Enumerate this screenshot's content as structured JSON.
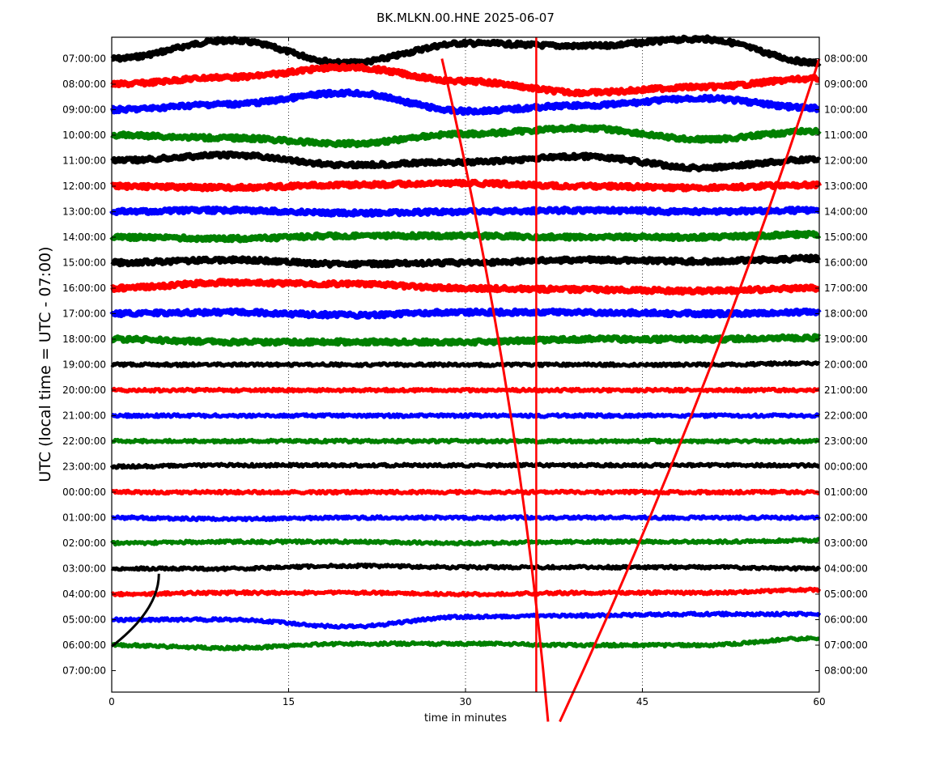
{
  "chart_data": {
    "type": "line",
    "title": "BK.MLKN.00.HNE 2025-06-07",
    "xlabel": "time in minutes",
    "ylabel": "UTC (local time = UTC - 07:00)",
    "xlim": [
      0,
      60
    ],
    "x_ticks": [
      "0",
      "15",
      "30",
      "45",
      "60"
    ],
    "grid": "vertical dotted lines at x ticks",
    "left_tick_labels": [
      "07:00:00",
      "08:00:00",
      "09:00:00",
      "10:00:00",
      "11:00:00",
      "12:00:00",
      "13:00:00",
      "14:00:00",
      "15:00:00",
      "16:00:00",
      "17:00:00",
      "18:00:00",
      "19:00:00",
      "20:00:00",
      "21:00:00",
      "22:00:00",
      "23:00:00",
      "00:00:00",
      "01:00:00",
      "02:00:00",
      "03:00:00",
      "04:00:00",
      "05:00:00",
      "06:00:00",
      "07:00:00"
    ],
    "right_tick_labels": [
      "08:00:00",
      "09:00:00",
      "10:00:00",
      "11:00:00",
      "12:00:00",
      "13:00:00",
      "14:00:00",
      "15:00:00",
      "16:00:00",
      "17:00:00",
      "18:00:00",
      "19:00:00",
      "20:00:00",
      "21:00:00",
      "22:00:00",
      "23:00:00",
      "00:00:00",
      "01:00:00",
      "02:00:00",
      "03:00:00",
      "04:00:00",
      "05:00:00",
      "06:00:00",
      "07:00:00",
      "08:00:00"
    ],
    "trace_colors": [
      "#000000",
      "#ff0000",
      "#0000ff",
      "#008000"
    ],
    "trace_count": 24,
    "vertical_marker_minute": 36,
    "drift_curves": [
      {
        "color": "#ff0000",
        "points": [
          [
            28,
            0
          ],
          [
            37,
            26
          ]
        ]
      },
      {
        "color": "#ff0000",
        "points": [
          [
            38,
            26
          ],
          [
            60,
            0
          ]
        ]
      },
      {
        "color": "#000000",
        "points": [
          [
            0,
            23.05
          ],
          [
            4,
            20.2
          ]
        ]
      }
    ],
    "trace_offsets": [
      [
        0.0,
        1.3,
        -0.3,
        1.1,
        0.9,
        1.4,
        -0.3
      ],
      [
        0.0,
        0.5,
        1.2,
        0.2,
        -0.6,
        -0.2,
        0.4
      ],
      [
        0.0,
        0.4,
        1.2,
        -0.1,
        0.3,
        0.8,
        0.1
      ],
      [
        0.0,
        -0.2,
        -0.6,
        0.1,
        0.5,
        -0.3,
        0.3
      ],
      [
        0.0,
        0.4,
        -0.3,
        -0.1,
        0.3,
        -0.5,
        0.1
      ],
      [
        0.0,
        -0.1,
        0.1,
        0.2,
        0.0,
        -0.1,
        0.1
      ],
      [
        0.0,
        0.1,
        -0.1,
        0.0,
        0.1,
        0.0,
        0.1
      ],
      [
        0.0,
        -0.1,
        0.1,
        0.1,
        0.0,
        0.0,
        0.2
      ],
      [
        0.0,
        0.2,
        -0.1,
        0.0,
        0.2,
        0.1,
        0.3
      ],
      [
        0.0,
        0.4,
        0.3,
        0.0,
        -0.1,
        -0.2,
        0.0
      ],
      [
        0.0,
        0.1,
        -0.1,
        0.1,
        0.1,
        0.0,
        0.1
      ],
      [
        0.0,
        -0.2,
        -0.2,
        -0.2,
        0.0,
        0.0,
        0.1
      ],
      [
        0.0,
        0.0,
        0.0,
        0.0,
        0.0,
        0.0,
        0.1
      ],
      [
        0.0,
        0.0,
        0.0,
        0.0,
        0.0,
        0.0,
        0.0
      ],
      [
        0.0,
        0.0,
        0.0,
        0.0,
        0.0,
        0.0,
        0.0
      ],
      [
        0.0,
        0.0,
        0.0,
        0.0,
        0.0,
        0.0,
        0.0
      ],
      [
        0.0,
        0.1,
        0.1,
        0.1,
        0.1,
        0.1,
        0.1
      ],
      [
        0.0,
        0.0,
        0.0,
        0.0,
        0.0,
        0.0,
        0.0
      ],
      [
        0.0,
        -0.1,
        0.0,
        0.0,
        0.0,
        0.0,
        0.0
      ],
      [
        0.0,
        0.1,
        0.1,
        0.0,
        0.1,
        0.1,
        0.2
      ],
      [
        0.0,
        0.0,
        0.2,
        0.1,
        0.1,
        0.1,
        0.0
      ],
      [
        0.0,
        0.1,
        0.1,
        0.0,
        0.1,
        0.1,
        0.3
      ],
      [
        0.0,
        0.0,
        -0.5,
        0.2,
        0.3,
        0.4,
        0.4
      ],
      [
        0.0,
        -0.2,
        0.1,
        0.1,
        0.0,
        0.0,
        0.5
      ]
    ]
  }
}
